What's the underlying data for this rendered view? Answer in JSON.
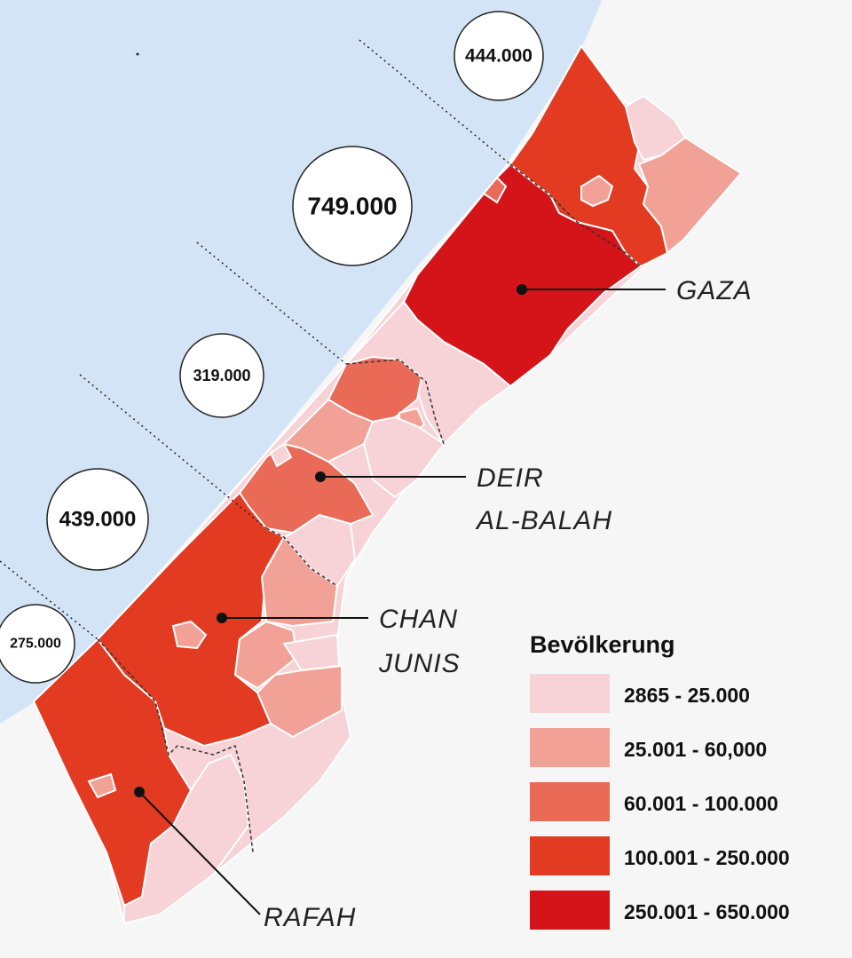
{
  "map": {
    "colors": {
      "sea": "#d2e4f6",
      "land": "#f6f6f6",
      "class1": "#f7d2d6",
      "class2": "#f2a196",
      "class3": "#e96a57",
      "class4": "#e23b22",
      "class5": "#d41418"
    },
    "governorate_circles": [
      {
        "value": "444.000"
      },
      {
        "value": "749.000"
      },
      {
        "value": "319.000"
      },
      {
        "value": "439.000"
      },
      {
        "value": "275.000"
      }
    ],
    "cities": [
      {
        "lines": [
          "GAZA"
        ]
      },
      {
        "lines": [
          "DEIR",
          "AL-BALAH"
        ]
      },
      {
        "lines": [
          "CHAN",
          "JUNIS"
        ]
      },
      {
        "lines": [
          "RAFAH"
        ]
      }
    ],
    "legend": {
      "title": "Bevölkerung",
      "items": [
        {
          "label": "2865 - 25.000",
          "color": "#f7d2d6"
        },
        {
          "label": "25.001 - 60,000",
          "color": "#f2a196"
        },
        {
          "label": "60.001 - 100.000",
          "color": "#e96a57"
        },
        {
          "label": "100.001 - 250.000",
          "color": "#e23b22"
        },
        {
          "label": "250.001 - 650.000",
          "color": "#d41418"
        }
      ]
    }
  }
}
